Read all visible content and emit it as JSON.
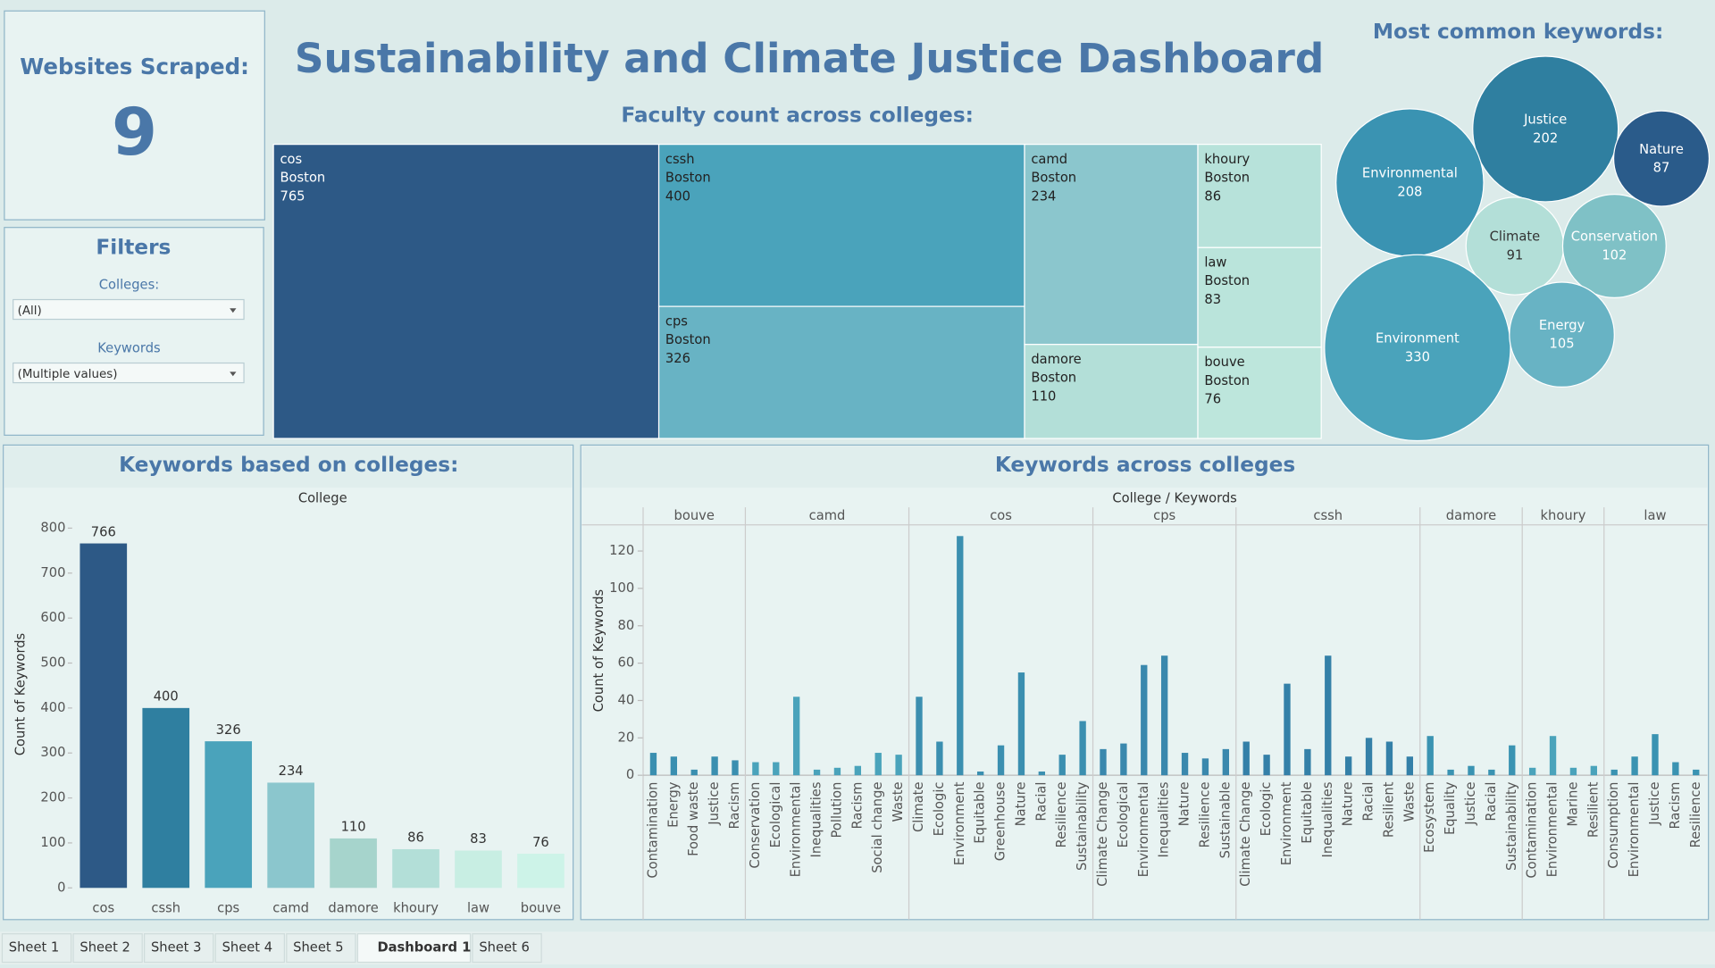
{
  "header": {
    "title": "Sustainability and Climate Justice Dashboard"
  },
  "websites": {
    "label": "Websites Scraped:",
    "value": 9
  },
  "filters": {
    "title": "Filters",
    "colleges_label": "Colleges:",
    "colleges_value": "(All)",
    "keywords_label": "Keywords",
    "keywords_value": "(Multiple values)"
  },
  "tabs": {
    "items": [
      "Sheet 1",
      "Sheet 2",
      "Sheet 3",
      "Sheet 4",
      "Sheet 5",
      "Dashboard 1",
      "Sheet 6"
    ],
    "active": 5
  },
  "chart_data": [
    {
      "type": "treemap",
      "title": "Faculty count across colleges:",
      "categories": [
        "cos",
        "cssh",
        "cps",
        "camd",
        "damore",
        "khoury",
        "law",
        "bouve"
      ],
      "locations": [
        "Boston",
        "Boston",
        "Boston",
        "Boston",
        "Boston",
        "Boston",
        "Boston",
        "Boston"
      ],
      "values": [
        765,
        400,
        326,
        234,
        110,
        86,
        83,
        76
      ],
      "colors": [
        "#2d5986",
        "#4aa3bb",
        "#68b3c4",
        "#8bc6cd",
        "#b3dfd8",
        "#b7e2da",
        "#bae4db",
        "#bde6dc"
      ]
    },
    {
      "type": "bubble",
      "title": "Most common keywords:",
      "categories": [
        "Justice",
        "Nature",
        "Environmental",
        "Climate",
        "Conservation",
        "Environment",
        "Energy"
      ],
      "values": [
        202,
        87,
        208,
        91,
        102,
        330,
        105
      ],
      "colors": [
        "#2f7fa0",
        "#2a5b8a",
        "#3a93b2",
        "#b3dfd8",
        "#7fc1c6",
        "#4aa3bb",
        "#68b3c4"
      ]
    },
    {
      "type": "bar",
      "title": "Keywords based on colleges:",
      "x_label": "College",
      "y_label": "Count of Keywords",
      "categories": [
        "cos",
        "cssh",
        "cps",
        "camd",
        "damore",
        "khoury",
        "law",
        "bouve"
      ],
      "values": [
        766,
        400,
        326,
        234,
        110,
        86,
        83,
        76
      ],
      "colors": [
        "#2d5986",
        "#2f7fa0",
        "#4aa3bb",
        "#8bc6cd",
        "#a6d4cc",
        "#b3dfd8",
        "#c8eee3",
        "#cdf3e8"
      ],
      "ylim": [
        0,
        800
      ],
      "yticks": [
        0,
        100,
        200,
        300,
        400,
        500,
        600,
        700,
        800
      ]
    },
    {
      "type": "grouped_bar",
      "title": "Keywords across colleges",
      "x_label": "College / Keywords",
      "y_label": "Count of Keywords",
      "ylim": [
        0,
        134
      ],
      "yticks": [
        0,
        20,
        40,
        60,
        80,
        100,
        120
      ],
      "groups": [
        {
          "name": "bouve",
          "color": "#3a8fb0",
          "categories": [
            "Contamination",
            "Energy",
            "Food waste",
            "Justice",
            "Racism"
          ],
          "values": [
            12,
            10,
            3,
            10,
            8
          ]
        },
        {
          "name": "camd",
          "color": "#4aa3bb",
          "categories": [
            "Conservation",
            "Ecological",
            "Environmental",
            "Inequalities",
            "Pollution",
            "Racism",
            "Social change",
            "Waste"
          ],
          "values": [
            7,
            7,
            42,
            3,
            4,
            5,
            12,
            11
          ]
        },
        {
          "name": "cos",
          "color": "#3b8fb0",
          "categories": [
            "Climate",
            "Ecologic",
            "Environment",
            "Equitable",
            "Greenhouse",
            "Nature",
            "Racial",
            "Resilience",
            "Sustainability"
          ],
          "values": [
            42,
            18,
            128,
            2,
            16,
            55,
            2,
            11,
            29
          ]
        },
        {
          "name": "cps",
          "color": "#3a88ad",
          "categories": [
            "Climate Change",
            "Ecological",
            "Environmental",
            "Inequalities",
            "Nature",
            "Resilience",
            "Sustainable"
          ],
          "values": [
            14,
            17,
            59,
            64,
            12,
            9,
            14
          ]
        },
        {
          "name": "cssh",
          "color": "#3480a8",
          "categories": [
            "Climate Change",
            "Ecologic",
            "Environment",
            "Equitable",
            "Inequalities",
            "Nature",
            "Racial",
            "Resilient",
            "Waste"
          ],
          "values": [
            18,
            11,
            49,
            14,
            64,
            10,
            20,
            18,
            10
          ]
        },
        {
          "name": "damore",
          "color": "#3a93b2",
          "categories": [
            "Ecosystem",
            "Equality",
            "Justice",
            "Racial",
            "Sustainability"
          ],
          "values": [
            21,
            3,
            5,
            3,
            16
          ]
        },
        {
          "name": "khoury",
          "color": "#4aa3bb",
          "categories": [
            "Contamination",
            "Environmental",
            "Marine",
            "Resilient"
          ],
          "values": [
            4,
            21,
            4,
            5
          ]
        },
        {
          "name": "law",
          "color": "#3a93b2",
          "categories": [
            "Consumption",
            "Environmental",
            "Justice",
            "Racism",
            "Resilience"
          ],
          "values": [
            3,
            10,
            22,
            7,
            3
          ]
        }
      ]
    }
  ]
}
